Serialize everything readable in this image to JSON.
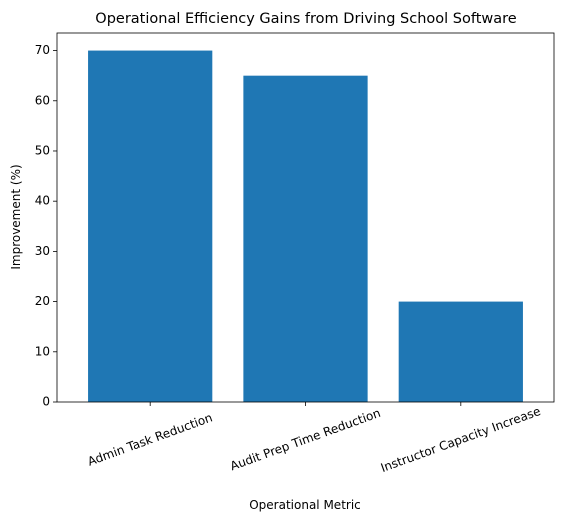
{
  "chart_data": {
    "type": "bar",
    "title": "Operational Efficiency Gains from Driving School Software",
    "xlabel": "Operational Metric",
    "ylabel": "Improvement (%)",
    "categories": [
      "Admin Task Reduction",
      "Audit Prep Time Reduction",
      "Instructor Capacity Increase"
    ],
    "values": [
      70,
      65,
      20
    ],
    "ylim": [
      0,
      73.5
    ],
    "yticks": [
      0,
      10,
      20,
      30,
      40,
      50,
      60,
      70
    ],
    "bar_color": "#1f77b4",
    "grid": false,
    "legend": "none"
  }
}
